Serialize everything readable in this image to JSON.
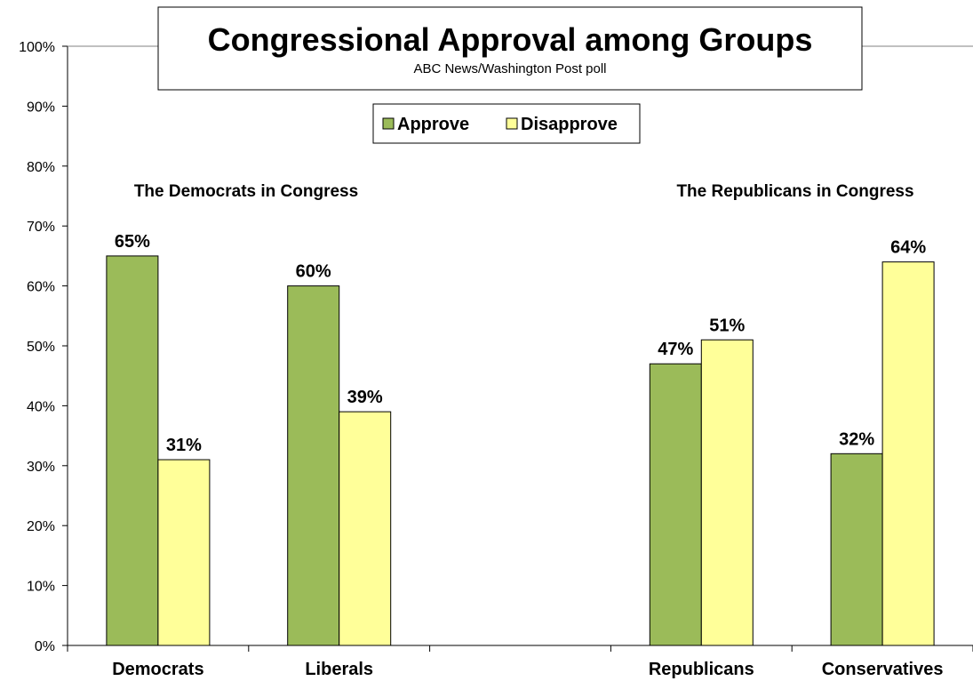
{
  "chart_data": {
    "type": "bar",
    "title": "Congressional Approval among Groups",
    "subtitle": "ABC News/Washington  Post poll",
    "categories": [
      "Democrats",
      "Liberals",
      "",
      "Republicans",
      "Conservatives"
    ],
    "series": [
      {
        "name": "Approve",
        "color": "#9bbb59",
        "values": [
          65,
          60,
          null,
          47,
          32
        ],
        "labels": [
          "65%",
          "60%",
          "",
          "47%",
          "32%"
        ]
      },
      {
        "name": "Disapprove",
        "color": "#ffff99",
        "values": [
          31,
          39,
          null,
          51,
          64
        ],
        "labels": [
          "31%",
          "39%",
          "",
          "51%",
          "64%"
        ]
      }
    ],
    "ylim": [
      0,
      100
    ],
    "yticks": [
      0,
      10,
      20,
      30,
      40,
      50,
      60,
      70,
      80,
      90,
      100
    ],
    "ytick_labels": [
      "0%",
      "10%",
      "20%",
      "30%",
      "40%",
      "50%",
      "60%",
      "70%",
      "80%",
      "90%",
      "100%"
    ],
    "group_labels": [
      "The Democrats in Congress",
      "The Republicans in Congress"
    ],
    "grid": false,
    "legend_position": "top-center"
  }
}
